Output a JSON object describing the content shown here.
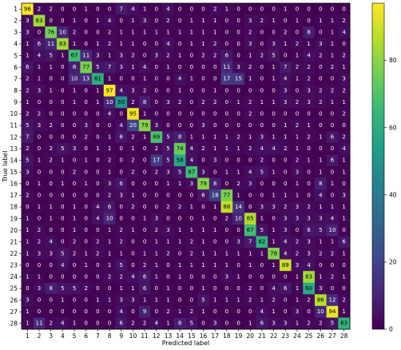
{
  "chart_data": {
    "type": "heatmap",
    "title": "",
    "xlabel": "Predicted label",
    "ylabel": "True label",
    "x_categories": [
      "1",
      "2",
      "3",
      "4",
      "5",
      "6",
      "7",
      "8",
      "9",
      "10",
      "11",
      "12",
      "13",
      "14",
      "15",
      "16",
      "17",
      "18",
      "19",
      "20",
      "21",
      "22",
      "23",
      "24",
      "25",
      "26",
      "27",
      "28"
    ],
    "y_categories": [
      "1",
      "2",
      "3",
      "4",
      "5",
      "6",
      "7",
      "8",
      "9",
      "10",
      "11",
      "12",
      "13",
      "14",
      "15",
      "16",
      "17",
      "18",
      "19",
      "20",
      "21",
      "22",
      "23",
      "24",
      "25",
      "26",
      "27",
      "28"
    ],
    "matrix": [
      [
        96,
        2,
        2,
        0,
        0,
        1,
        0,
        0,
        7,
        4,
        1,
        0,
        4,
        0,
        0,
        0,
        2,
        1,
        0,
        0,
        0,
        0,
        1,
        0,
        0,
        0,
        0,
        0
      ],
      [
        3,
        83,
        0,
        0,
        1,
        0,
        1,
        4,
        0,
        1,
        3,
        0,
        2,
        0,
        1,
        1,
        1,
        0,
        0,
        3,
        2,
        1,
        0,
        1,
        0,
        1,
        1,
        2
      ],
      [
        3,
        0,
        76,
        10,
        2,
        0,
        0,
        2,
        1,
        1,
        1,
        1,
        1,
        1,
        1,
        1,
        1,
        0,
        0,
        2,
        0,
        0,
        2,
        0,
        8,
        0,
        1,
        4
      ],
      [
        1,
        6,
        11,
        83,
        1,
        0,
        1,
        2,
        1,
        1,
        0,
        0,
        4,
        0,
        1,
        1,
        2,
        0,
        0,
        3,
        0,
        3,
        1,
        2,
        1,
        3,
        1,
        0
      ],
      [
        1,
        4,
        5,
        1,
        67,
        11,
        3,
        1,
        3,
        2,
        0,
        3,
        2,
        1,
        0,
        2,
        2,
        6,
        0,
        1,
        2,
        5,
        0,
        1,
        4,
        2,
        1,
        2
      ],
      [
        6,
        1,
        1,
        0,
        8,
        77,
        5,
        7,
        3,
        1,
        4,
        0,
        1,
        0,
        0,
        0,
        0,
        11,
        3,
        2,
        0,
        1,
        7,
        2,
        2,
        0,
        2,
        1
      ],
      [
        2,
        1,
        0,
        0,
        10,
        13,
        61,
        1,
        0,
        0,
        1,
        0,
        0,
        4,
        1,
        0,
        0,
        17,
        15,
        1,
        0,
        1,
        4,
        1,
        2,
        0,
        0,
        3
      ],
      [
        2,
        3,
        1,
        0,
        1,
        0,
        1,
        97,
        4,
        3,
        2,
        0,
        0,
        1,
        0,
        0,
        1,
        0,
        0,
        0,
        0,
        0,
        3,
        0,
        3,
        2,
        2,
        2
      ],
      [
        1,
        0,
        0,
        0,
        1,
        0,
        1,
        10,
        50,
        2,
        8,
        0,
        3,
        2,
        0,
        2,
        2,
        0,
        1,
        2,
        1,
        1,
        3,
        2,
        3,
        2,
        1,
        1
      ],
      [
        2,
        2,
        0,
        0,
        0,
        0,
        0,
        4,
        0,
        95,
        1,
        0,
        0,
        0,
        0,
        0,
        0,
        0,
        0,
        2,
        0,
        0,
        0,
        0,
        0,
        0,
        0,
        2
      ],
      [
        5,
        3,
        2,
        0,
        0,
        3,
        0,
        0,
        4,
        20,
        79,
        3,
        0,
        0,
        0,
        3,
        0,
        0,
        0,
        0,
        0,
        0,
        1,
        2,
        1,
        0,
        0,
        0
      ],
      [
        7,
        0,
        0,
        0,
        0,
        2,
        0,
        1,
        6,
        2,
        1,
        69,
        5,
        8,
        1,
        1,
        1,
        1,
        2,
        1,
        3,
        1,
        1,
        1,
        2,
        1,
        6,
        2
      ],
      [
        2,
        0,
        2,
        5,
        3,
        0,
        1,
        1,
        0,
        1,
        0,
        2,
        5,
        74,
        4,
        2,
        1,
        1,
        1,
        2,
        4,
        4,
        2,
        1,
        0,
        0,
        0,
        4
      ],
      [
        5,
        1,
        2,
        1,
        0,
        1,
        0,
        2,
        0,
        2,
        0,
        17,
        5,
        58,
        4,
        0,
        3,
        0,
        0,
        0,
        2,
        0,
        0,
        2,
        1,
        1,
        6,
        1
      ],
      [
        3,
        0,
        0,
        0,
        2,
        0,
        0,
        1,
        0,
        2,
        0,
        2,
        3,
        5,
        67,
        3,
        0,
        1,
        1,
        4,
        5,
        1,
        0,
        3,
        0,
        1,
        0,
        1
      ],
      [
        0,
        1,
        0,
        1,
        0,
        1,
        0,
        3,
        6,
        0,
        0,
        0,
        1,
        1,
        3,
        79,
        8,
        0,
        2,
        3,
        0,
        0,
        0,
        1,
        0,
        8,
        1,
        0
      ],
      [
        2,
        0,
        0,
        0,
        0,
        0,
        0,
        2,
        3,
        1,
        0,
        0,
        0,
        0,
        0,
        6,
        18,
        77,
        1,
        0,
        0,
        1,
        1,
        1,
        0,
        4,
        0,
        3
      ],
      [
        0,
        1,
        1,
        0,
        1,
        0,
        4,
        6,
        0,
        2,
        0,
        0,
        2,
        2,
        1,
        0,
        1,
        88,
        14,
        0,
        3,
        3,
        2,
        3,
        2,
        1,
        1,
        1
      ],
      [
        1,
        0,
        1,
        0,
        1,
        0,
        4,
        10,
        0,
        0,
        1,
        3,
        0,
        0,
        0,
        1,
        0,
        2,
        10,
        85,
        1,
        0,
        3,
        3,
        3,
        3,
        4,
        1
      ],
      [
        1,
        2,
        0,
        0,
        1,
        0,
        0,
        1,
        2,
        1,
        0,
        2,
        3,
        1,
        1,
        1,
        1,
        0,
        0,
        67,
        5,
        1,
        3,
        0,
        6,
        5,
        10,
        0
      ],
      [
        1,
        2,
        4,
        0,
        2,
        0,
        2,
        1,
        2,
        0,
        0,
        1,
        1,
        1,
        2,
        1,
        0,
        0,
        3,
        7,
        62,
        1,
        4,
        2,
        3,
        1,
        1,
        6
      ],
      [
        1,
        3,
        3,
        5,
        2,
        1,
        2,
        1,
        1,
        0,
        1,
        1,
        2,
        0,
        2,
        1,
        1,
        1,
        1,
        1,
        1,
        78,
        4,
        2,
        3,
        2,
        2,
        1
      ],
      [
        0,
        0,
        0,
        4,
        0,
        1,
        0,
        1,
        5,
        0,
        2,
        1,
        0,
        1,
        1,
        1,
        1,
        1,
        0,
        1,
        0,
        1,
        89,
        3,
        4,
        0,
        0,
        0
      ],
      [
        1,
        1,
        0,
        0,
        0,
        0,
        0,
        2,
        2,
        4,
        6,
        1,
        0,
        1,
        0,
        0,
        0,
        3,
        1,
        0,
        0,
        0,
        0,
        1,
        83,
        1,
        2,
        1
      ],
      [
        0,
        3,
        8,
        5,
        5,
        2,
        0,
        0,
        1,
        1,
        6,
        0,
        1,
        0,
        0,
        1,
        0,
        0,
        0,
        2,
        0,
        4,
        6,
        1,
        60,
        3,
        0,
        0
      ],
      [
        3,
        0,
        0,
        1,
        0,
        0,
        1,
        1,
        3,
        3,
        1,
        1,
        1,
        0,
        0,
        5,
        1,
        1,
        1,
        2,
        1,
        2,
        0,
        1,
        2,
        86,
        12,
        2
      ],
      [
        1,
        0,
        0,
        0,
        0,
        0,
        0,
        0,
        4,
        0,
        9,
        0,
        2,
        1,
        2,
        1,
        0,
        0,
        0,
        0,
        4,
        1,
        0,
        3,
        0,
        10,
        94,
        1
      ],
      [
        1,
        11,
        2,
        4,
        1,
        0,
        0,
        0,
        6,
        2,
        2,
        4,
        1,
        8,
        5,
        0,
        3,
        0,
        0,
        1,
        6,
        3,
        3,
        1,
        2,
        2,
        5,
        63
      ]
    ],
    "zlim": [
      0,
      97
    ],
    "colorbar_ticks": [
      0,
      20,
      40,
      60,
      80
    ],
    "colormap": "viridis",
    "colormap_stops": [
      "#440154",
      "#482878",
      "#3e4989",
      "#31688e",
      "#26828e",
      "#1f9e89",
      "#35b779",
      "#6ece58",
      "#b5de2b",
      "#fde725"
    ],
    "text_light": "#ffffff",
    "text_dark": "#000000"
  }
}
